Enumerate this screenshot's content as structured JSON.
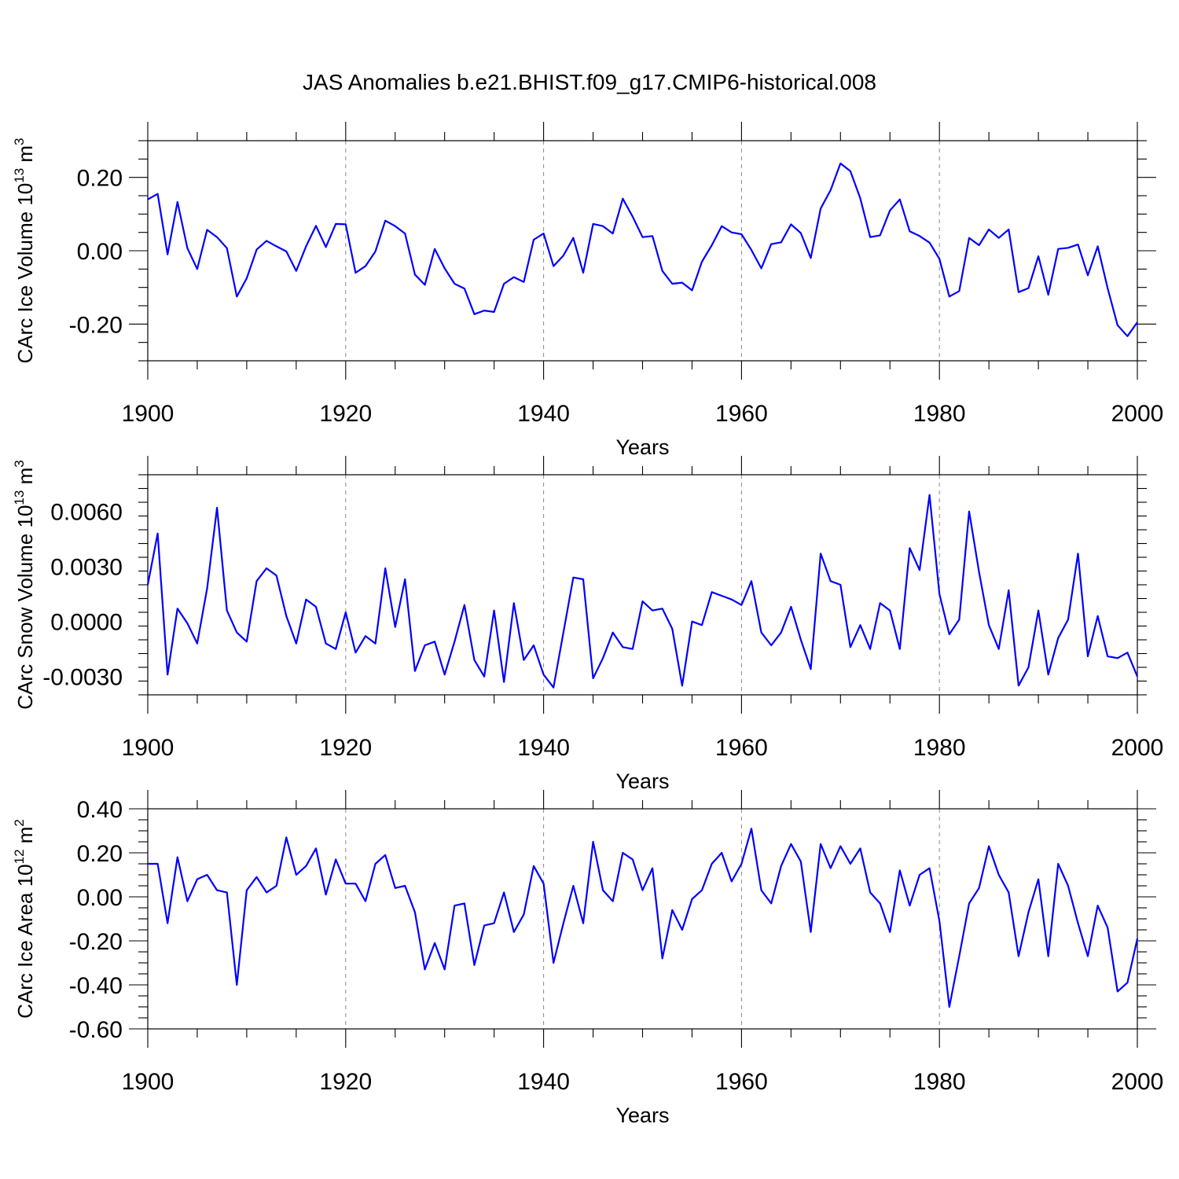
{
  "title": "JAS Anomalies b.e21.BHIST.f09_g17.CMIP6-historical.008",
  "chart_data": [
    {
      "type": "line",
      "ylabel_prefix": "CArc Ice Volume 10",
      "ylabel_exp": "13",
      "ylabel_unit": " m",
      "ylabel_unit_exp": "3",
      "xlabel": "Years",
      "xlim": [
        1900,
        2000
      ],
      "ylim": [
        -0.3,
        0.3
      ],
      "yticks": [
        -0.2,
        0.0,
        0.2
      ],
      "ytick_labels": [
        "-0.20",
        "0.00",
        "0.20"
      ],
      "xticks": [
        1900,
        1920,
        1940,
        1960,
        1980,
        2000
      ],
      "xtick_labels": [
        "1900",
        "1920",
        "1940",
        "1960",
        "1980",
        "2000"
      ],
      "series": [
        {
          "name": "CArc Ice Volume",
          "color": "#0000ff",
          "x_start": 1900,
          "values": [
            0.14,
            0.155,
            -0.01,
            0.133,
            0.007,
            -0.05,
            0.057,
            0.037,
            0.007,
            -0.125,
            -0.075,
            0.003,
            0.027,
            0.012,
            -0.002,
            -0.055,
            0.012,
            0.068,
            0.01,
            0.073,
            0.072,
            -0.06,
            -0.042,
            -0.002,
            0.082,
            0.067,
            0.047,
            -0.065,
            -0.093,
            0.005,
            -0.048,
            -0.09,
            -0.103,
            -0.173,
            -0.163,
            -0.167,
            -0.09,
            -0.072,
            -0.085,
            0.03,
            0.047,
            -0.042,
            -0.013,
            0.035,
            -0.06,
            0.073,
            0.067,
            0.047,
            0.142,
            0.093,
            0.037,
            0.04,
            -0.055,
            -0.09,
            -0.087,
            -0.108,
            -0.03,
            0.015,
            0.067,
            0.05,
            0.045,
            0.002,
            -0.048,
            0.018,
            0.023,
            0.072,
            0.048,
            -0.02,
            0.115,
            0.165,
            0.238,
            0.217,
            0.143,
            0.037,
            0.042,
            0.11,
            0.14,
            0.053,
            0.04,
            0.022,
            -0.022,
            -0.125,
            -0.11,
            0.035,
            0.015,
            0.058,
            0.035,
            0.058,
            -0.113,
            -0.102,
            -0.015,
            -0.12,
            0.005,
            0.008,
            0.017,
            -0.067,
            0.012,
            -0.102,
            -0.203,
            -0.233,
            -0.195
          ]
        }
      ]
    },
    {
      "type": "line",
      "ylabel_prefix": "CArc Snow Volume 10",
      "ylabel_exp": "13",
      "ylabel_unit": " m",
      "ylabel_unit_exp": "3",
      "xlabel": "Years",
      "xlim": [
        1900,
        2000
      ],
      "ylim": [
        -0.004,
        0.008
      ],
      "yticks": [
        -0.003,
        0.0,
        0.003,
        0.006
      ],
      "ytick_labels": [
        "-0.0030",
        "0.0000",
        "0.0030",
        "0.0060"
      ],
      "xticks": [
        1900,
        1920,
        1940,
        1960,
        1980,
        2000
      ],
      "xtick_labels": [
        "1900",
        "1920",
        "1940",
        "1960",
        "1980",
        "2000"
      ],
      "series": [
        {
          "name": "CArc Snow Volume",
          "color": "#0000ff",
          "x_start": 1900,
          "values": [
            0.002,
            0.0048,
            -0.0029,
            0.0007,
            -0.0001,
            -0.0012,
            0.0018,
            0.0062,
            0.0006,
            -0.0006,
            -0.0011,
            0.0022,
            0.0029,
            0.0025,
            0.0003,
            -0.0012,
            0.0012,
            0.0008,
            -0.0012,
            -0.0015,
            0.0005,
            -0.0017,
            -0.0008,
            -0.0012,
            0.0029,
            -0.0003,
            0.0023,
            -0.0027,
            -0.0013,
            -0.0011,
            -0.0029,
            -0.0011,
            0.0009,
            -0.0021,
            -0.003,
            0.0006,
            -0.0033,
            0.001,
            -0.0021,
            -0.0013,
            -0.0029,
            -0.0036,
            -0.0006,
            0.0024,
            0.0023,
            -0.0031,
            -0.002,
            -0.0006,
            -0.0014,
            -0.0015,
            0.0011,
            0.0006,
            0.0007,
            -0.0004,
            -0.0035,
            0.0,
            -0.0002,
            0.0016,
            0.0014,
            0.0012,
            0.0009,
            0.0022,
            -0.0006,
            -0.0013,
            -0.0006,
            0.0008,
            -0.001,
            -0.0026,
            0.0037,
            0.0022,
            0.002,
            -0.0014,
            -0.0002,
            -0.0015,
            0.001,
            0.0006,
            -0.0015,
            0.004,
            0.0028,
            0.0069,
            0.0015,
            -0.0007,
            0.0001,
            0.006,
            0.0027,
            -0.0002,
            -0.0015,
            0.0017,
            -0.0035,
            -0.0025,
            0.0006,
            -0.0029,
            -0.0009,
            0.0001,
            0.0037,
            -0.0019,
            0.0003,
            -0.0019,
            -0.002,
            -0.0017,
            -0.003
          ]
        }
      ]
    },
    {
      "type": "line",
      "ylabel_prefix": "CArc Ice Area 10",
      "ylabel_exp": "12",
      "ylabel_unit": " m",
      "ylabel_unit_exp": "2",
      "xlabel": "Years",
      "xlim": [
        1900,
        2000
      ],
      "ylim": [
        -0.6,
        0.4
      ],
      "yticks": [
        -0.6,
        -0.4,
        -0.2,
        0.0,
        0.2,
        0.4
      ],
      "ytick_labels": [
        "-0.60",
        "-0.40",
        "-0.20",
        "0.00",
        "0.20",
        "0.40"
      ],
      "xticks": [
        1900,
        1920,
        1940,
        1960,
        1980,
        2000
      ],
      "xtick_labels": [
        "1900",
        "1920",
        "1940",
        "1960",
        "1980",
        "2000"
      ],
      "series": [
        {
          "name": "CArc Ice Area",
          "color": "#0000ff",
          "x_start": 1900,
          "values": [
            0.15,
            0.15,
            -0.12,
            0.18,
            -0.02,
            0.08,
            0.1,
            0.03,
            0.02,
            -0.4,
            0.03,
            0.09,
            0.02,
            0.05,
            0.27,
            0.1,
            0.14,
            0.22,
            0.01,
            0.17,
            0.06,
            0.06,
            -0.02,
            0.15,
            0.19,
            0.04,
            0.05,
            -0.07,
            -0.33,
            -0.21,
            -0.33,
            -0.04,
            -0.03,
            -0.31,
            -0.13,
            -0.12,
            0.02,
            -0.16,
            -0.08,
            0.14,
            0.06,
            -0.3,
            -0.12,
            0.05,
            -0.12,
            0.25,
            0.03,
            -0.02,
            0.2,
            0.17,
            0.03,
            0.13,
            -0.28,
            -0.06,
            -0.15,
            -0.01,
            0.03,
            0.15,
            0.2,
            0.07,
            0.15,
            0.31,
            0.03,
            -0.03,
            0.14,
            0.24,
            0.16,
            -0.16,
            0.24,
            0.13,
            0.23,
            0.15,
            0.22,
            0.02,
            -0.03,
            -0.16,
            0.12,
            -0.04,
            0.1,
            0.13,
            -0.11,
            -0.5,
            -0.27,
            -0.03,
            0.04,
            0.23,
            0.1,
            0.02,
            -0.27,
            -0.07,
            0.08,
            -0.27,
            0.15,
            0.05,
            -0.12,
            -0.27,
            -0.04,
            -0.14,
            -0.43,
            -0.39,
            -0.19
          ]
        }
      ]
    }
  ]
}
